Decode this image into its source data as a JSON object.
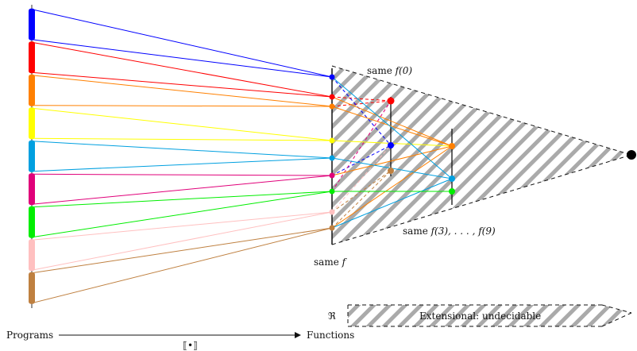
{
  "labels": {
    "same_f0_prefix": "same ",
    "same_f0_math": "f(0)",
    "same_f39_prefix": "same ",
    "same_f39_math": "f(3), . . . , f(9)",
    "same_f_prefix": "same ",
    "same_f_math": "f",
    "programs": "Programs",
    "functions": "Functions",
    "semantics_bracket": "⟦•⟧",
    "R_symbol": "ℜ",
    "extensional": "Extensional: undecidable"
  },
  "program_colors": [
    "#0000ff",
    "#ff0000",
    "#ff8000",
    "#ffff00",
    "#00a0e0",
    "#e0007a",
    "#00ee00",
    "#ffc0c0",
    "#bf8040"
  ],
  "column1_colors": [
    "#0000ff",
    "#ff0000",
    "#ff8000",
    "#ffff00",
    "#00a0e0",
    "#e0007a",
    "#00ee00",
    "#ffc0c0",
    "#bf8040"
  ],
  "column2_colors": [
    "#ff0000",
    "#0000ff",
    "#bf8040"
  ],
  "column3_colors": [
    "#ff8000",
    "#00a0e0",
    "#00ee00"
  ],
  "hatch_color": "#aaaaaa"
}
